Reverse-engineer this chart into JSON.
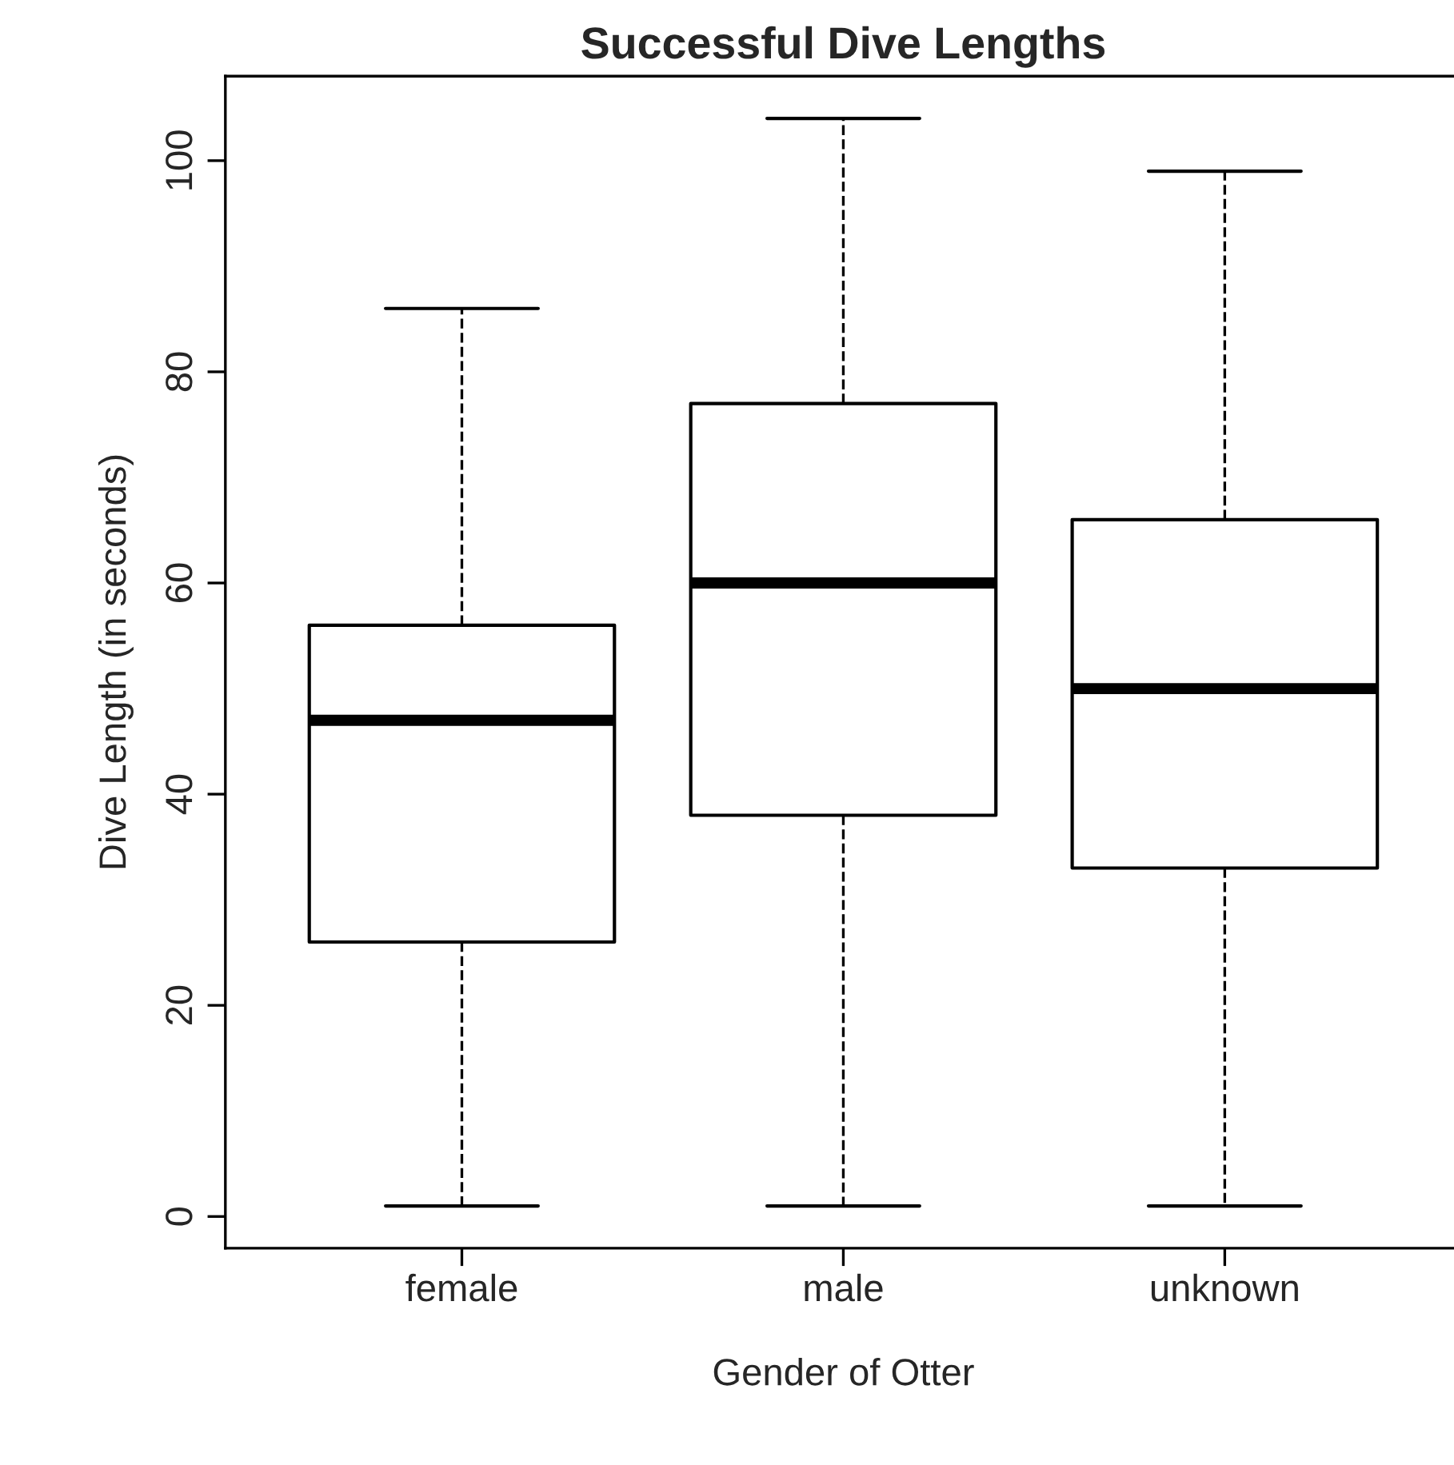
{
  "chart_data": {
    "type": "box",
    "title": "Successful Dive Lengths",
    "xlabel": "Gender of Otter",
    "ylabel": "Dive Length (in seconds)",
    "categories": [
      "female",
      "male",
      "unknown"
    ],
    "boxes": [
      {
        "low": 1,
        "q1": 26,
        "median": 47,
        "q3": 56,
        "high": 86
      },
      {
        "low": 1,
        "q1": 38,
        "median": 60,
        "q3": 77,
        "high": 104
      },
      {
        "low": 1,
        "q1": 33,
        "median": 50,
        "q3": 66,
        "high": 99
      }
    ],
    "ylim": [
      -3,
      108
    ],
    "yticks": [
      0,
      20,
      40,
      60,
      80,
      100
    ],
    "grid": false,
    "line_style": "dashed"
  }
}
